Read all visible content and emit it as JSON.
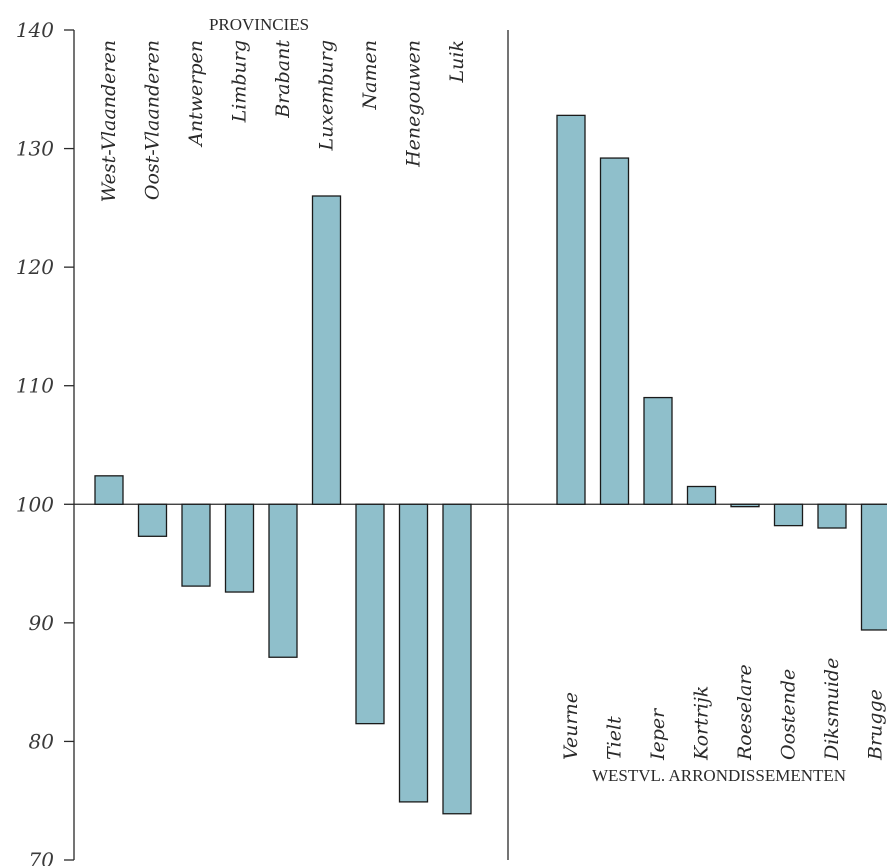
{
  "chart_data": {
    "type": "bar",
    "ylim": [
      70,
      140
    ],
    "yticks": [
      70,
      80,
      90,
      100,
      110,
      120,
      130,
      140
    ],
    "baseline": 100,
    "bar_color": "#8fbfcb",
    "groups": [
      {
        "label": "PROVINCIES",
        "categories": [
          "West-Vlaanderen",
          "Oost-Vlaanderen",
          "Antwerpen",
          "Limburg",
          "Brabant",
          "Luxemburg",
          "Namen",
          "Henegouwen",
          "Luik"
        ],
        "values": [
          102.4,
          97.3,
          93.1,
          92.6,
          87.1,
          126,
          81.5,
          74.9,
          73.9
        ]
      },
      {
        "label": "WESTVL. ARRONDISSEMENTEN",
        "categories": [
          "Veurne",
          "Tielt",
          "Ieper",
          "Kortrijk",
          "Roeselare",
          "Oostende",
          "Diksmuide",
          "Brugge"
        ],
        "values": [
          132.8,
          129.2,
          109,
          101.5,
          99.8,
          98.2,
          98,
          89.4
        ]
      }
    ]
  }
}
